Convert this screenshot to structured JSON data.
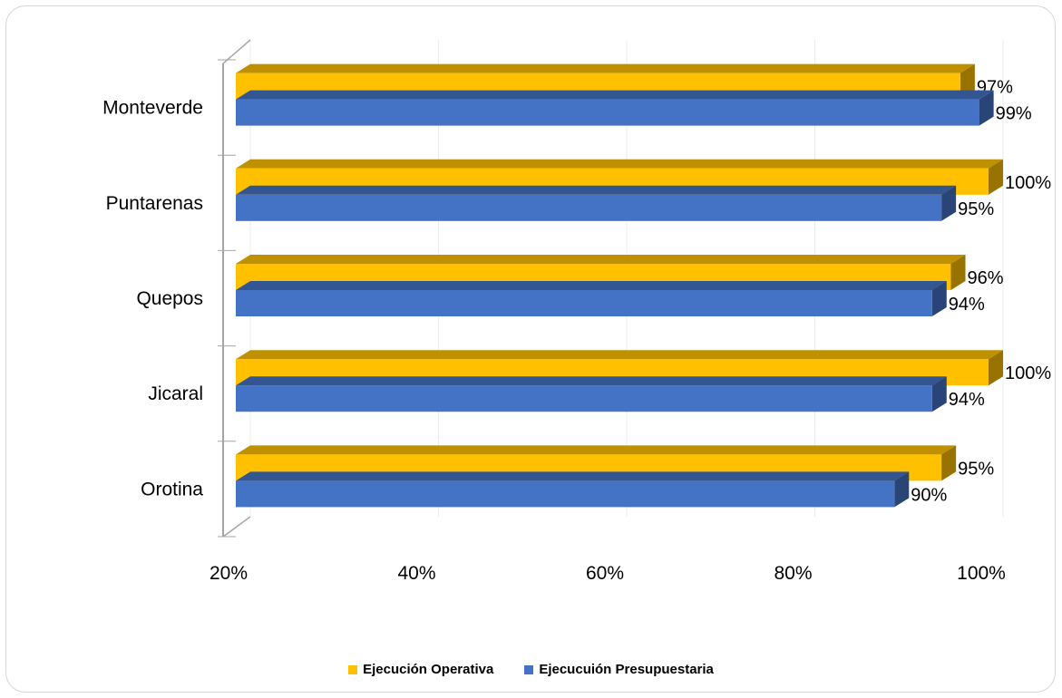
{
  "chart_data": {
    "type": "bar",
    "orientation": "horizontal",
    "title": "",
    "xlabel": "",
    "ylabel": "",
    "categories": [
      "Monteverde",
      "Puntarenas",
      "Quepos",
      "Jicaral",
      "Orotina"
    ],
    "series": [
      {
        "name": "Ejecución Operativa",
        "color": "#FFC000",
        "values": [
          97,
          100,
          96,
          100,
          95
        ],
        "labels": [
          "97%",
          "100%",
          "96%",
          "100%",
          "95%"
        ]
      },
      {
        "name": "Ejecucuión Presupuestaria",
        "color": "#4472C4",
        "values": [
          99,
          95,
          94,
          94,
          90
        ],
        "labels": [
          "99%",
          "95%",
          "94%",
          "94%",
          "90%"
        ]
      }
    ],
    "xlim": [
      20,
      100
    ],
    "xticks": [
      "20%",
      "40%",
      "60%",
      "80%",
      "100%"
    ],
    "grid": true,
    "legend": "bottom"
  }
}
